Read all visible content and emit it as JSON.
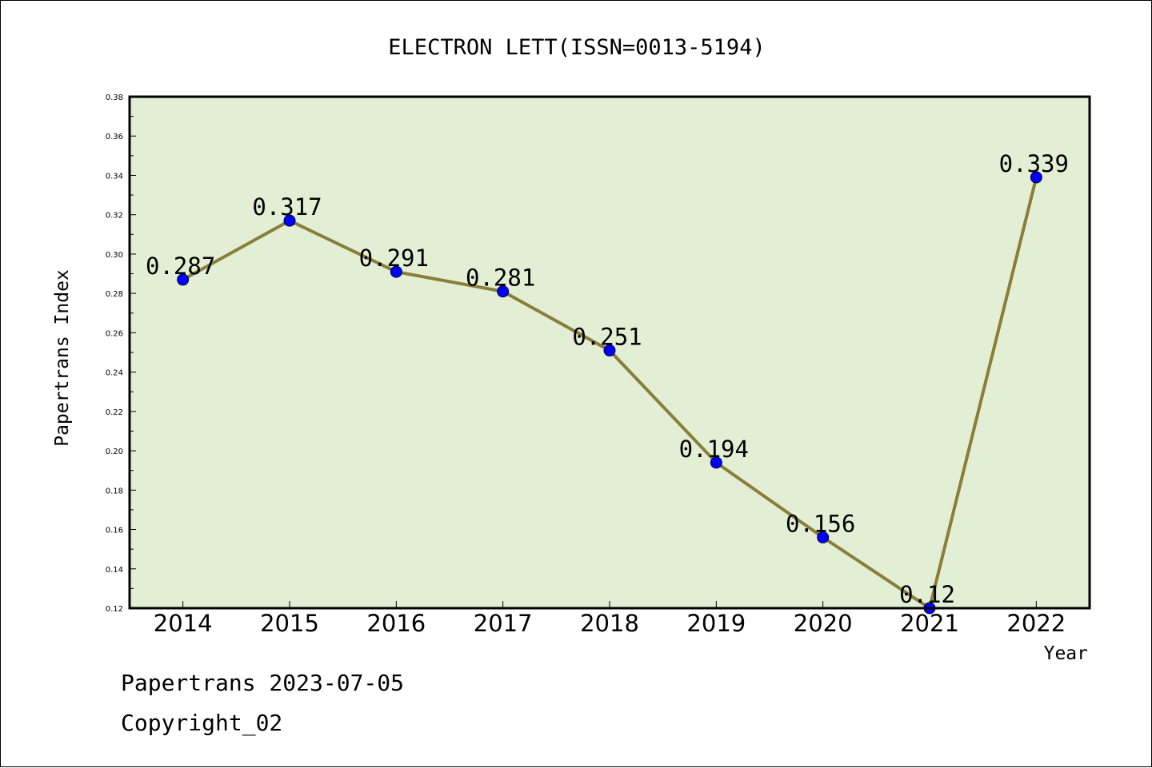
{
  "chart_data": {
    "type": "line",
    "title": "ELECTRON LETT(ISSN=0013-5194)",
    "xlabel": "Year",
    "ylabel": "Papertrans Index",
    "categories": [
      "2014",
      "2015",
      "2016",
      "2017",
      "2018",
      "2019",
      "2020",
      "2021",
      "2022"
    ],
    "series": [
      {
        "values": [
          0.287,
          0.317,
          0.291,
          0.281,
          0.251,
          0.194,
          0.156,
          0.12,
          0.339
        ],
        "data_labels": [
          "0.287",
          "0.317",
          "0.291",
          "0.281",
          "0.251",
          "0.194",
          "0.156",
          "0.12",
          "0.339"
        ]
      }
    ],
    "ylim": [
      0.12,
      0.38
    ],
    "yticks": [
      "0.12",
      "0.14",
      "0.16",
      "0.18",
      "0.20",
      "0.22",
      "0.24",
      "0.26",
      "0.28",
      "0.30",
      "0.32",
      "0.34",
      "0.36",
      "0.38"
    ],
    "grid": false,
    "legend": "none"
  },
  "footer": {
    "date_line": "Papertrans 2023-07-05",
    "copyright_line": "Copyright_02"
  },
  "colors": {
    "plot_background": "#e2efd5",
    "line": "#8b7d3a",
    "marker": "#0000ff",
    "axes": "#000000"
  }
}
